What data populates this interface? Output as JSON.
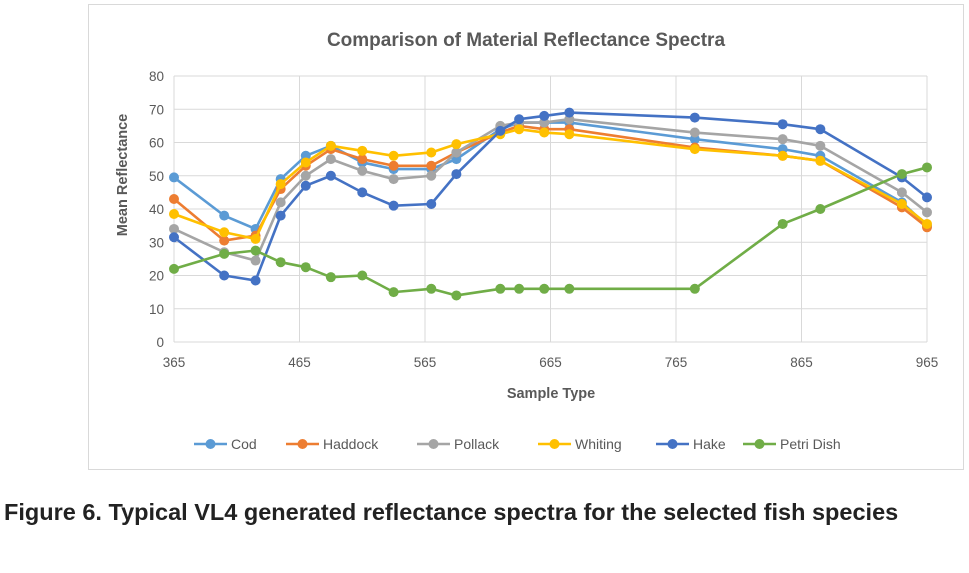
{
  "chart_data": {
    "type": "line",
    "title": "Comparison of Material Reflectance Spectra",
    "xlabel": "Sample Type",
    "ylabel": "Mean Reflectance",
    "xlim": [
      365,
      965
    ],
    "ylim": [
      0,
      80
    ],
    "xticks": [
      "365",
      "465",
      "565",
      "665",
      "765",
      "865",
      "965"
    ],
    "yticks": [
      "0",
      "10",
      "20",
      "30",
      "40",
      "50",
      "60",
      "70",
      "80"
    ],
    "grid": true,
    "legend_position": "bottom",
    "x": [
      365,
      405,
      430,
      450,
      470,
      490,
      515,
      540,
      570,
      590,
      625,
      640,
      660,
      680,
      780,
      850,
      880,
      945,
      965
    ],
    "series": [
      {
        "name": "Cod",
        "color": "#5b9bd5",
        "values": [
          49.5,
          38,
          34,
          49,
          56,
          59,
          54,
          52,
          52,
          55,
          64,
          66,
          66,
          66,
          61,
          58,
          56,
          42,
          35
        ]
      },
      {
        "name": "Haddock",
        "color": "#ed7d31",
        "values": [
          43,
          30.5,
          32,
          46,
          53,
          58,
          55,
          53,
          53,
          57,
          63,
          65,
          64,
          64,
          58.5,
          56,
          54.5,
          40.5,
          34.5
        ]
      },
      {
        "name": "Pollack",
        "color": "#a5a5a5",
        "values": [
          34,
          27,
          24.5,
          42,
          50,
          55,
          51.5,
          49,
          50,
          57,
          65,
          66,
          66,
          67,
          63,
          61,
          59,
          45,
          39
        ]
      },
      {
        "name": "Whiting",
        "color": "#ffc000",
        "values": [
          38.5,
          33,
          31,
          47.5,
          54,
          59,
          57.5,
          56,
          57,
          59.5,
          62.5,
          64,
          63,
          62.5,
          58,
          56,
          54.5,
          41.5,
          35.5
        ]
      },
      {
        "name": "Hake",
        "color": "#4472c4",
        "values": [
          31.5,
          20,
          18.5,
          38,
          47,
          50,
          45,
          41,
          41.5,
          50.5,
          63.5,
          67,
          68,
          69,
          67.5,
          65.5,
          64,
          49.5,
          43.5
        ]
      },
      {
        "name": "Petri Dish",
        "color": "#70ad47",
        "values": [
          22,
          26.5,
          27.5,
          24,
          22.5,
          19.5,
          20,
          15,
          16,
          14,
          16,
          16,
          16,
          16,
          16,
          35.5,
          40,
          50.5,
          52.5
        ]
      }
    ]
  },
  "caption": "Figure 6. Typical VL4 generated reflectance spectra for the selected fish species"
}
